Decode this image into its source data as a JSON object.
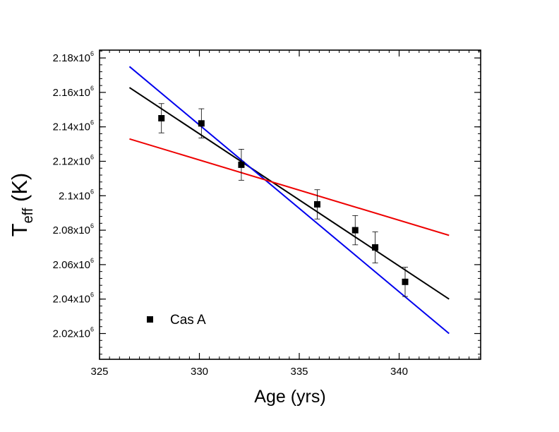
{
  "chart_data": {
    "type": "scatter",
    "title": "",
    "xlabel": "Age (yrs)",
    "ylabel_main": "T",
    "ylabel_sub": "eff",
    "ylabel_unit": " (K)",
    "xlim": [
      325,
      344
    ],
    "ylim": [
      2005000,
      2188000
    ],
    "x_ticks": [
      325,
      330,
      335,
      340
    ],
    "x_tick_labels": [
      "325",
      "330",
      "335",
      "340"
    ],
    "y_ticks": [
      2020000,
      2040000,
      2060000,
      2080000,
      2100000,
      2120000,
      2140000,
      2160000,
      2180000
    ],
    "y_tick_labels": [
      {
        "mant": "2.02x10",
        "exp": "6"
      },
      {
        "mant": "2.04x10",
        "exp": "6"
      },
      {
        "mant": "2.06x10",
        "exp": "6"
      },
      {
        "mant": "2.08x10",
        "exp": "6"
      },
      {
        "mant": "2.1x10",
        "exp": "6"
      },
      {
        "mant": "2.12x10",
        "exp": "6"
      },
      {
        "mant": "2.14x10",
        "exp": "6"
      },
      {
        "mant": "2.16x10",
        "exp": "6"
      },
      {
        "mant": "2.18x10",
        "exp": "6"
      }
    ],
    "grid": false,
    "legend": {
      "position": "bottom-left",
      "entries": [
        "Cas A"
      ]
    },
    "series": [
      {
        "name": "Cas A",
        "kind": "points_with_errorbars",
        "color": "#000000",
        "points": [
          {
            "x": 328.1,
            "y": 2145000,
            "err": 8500
          },
          {
            "x": 330.1,
            "y": 2142000,
            "err": 8500
          },
          {
            "x": 332.1,
            "y": 2118000,
            "err": 9000
          },
          {
            "x": 335.9,
            "y": 2095000,
            "err": 8500
          },
          {
            "x": 337.8,
            "y": 2080000,
            "err": 8500
          },
          {
            "x": 338.8,
            "y": 2070000,
            "err": 9000
          },
          {
            "x": 340.3,
            "y": 2050000,
            "err": 8500
          }
        ]
      },
      {
        "name": "black fit",
        "kind": "line",
        "color": "#000000",
        "x": [
          326.5,
          342.5
        ],
        "y": [
          2162800,
          2040000
        ]
      },
      {
        "name": "blue fit",
        "kind": "line",
        "color": "#0000ee",
        "x": [
          326.5,
          342.5
        ],
        "y": [
          2175000,
          2020000
        ]
      },
      {
        "name": "red fit",
        "kind": "line",
        "color": "#ee0000",
        "x": [
          326.5,
          342.5
        ],
        "y": [
          2133000,
          2077000
        ]
      }
    ]
  }
}
